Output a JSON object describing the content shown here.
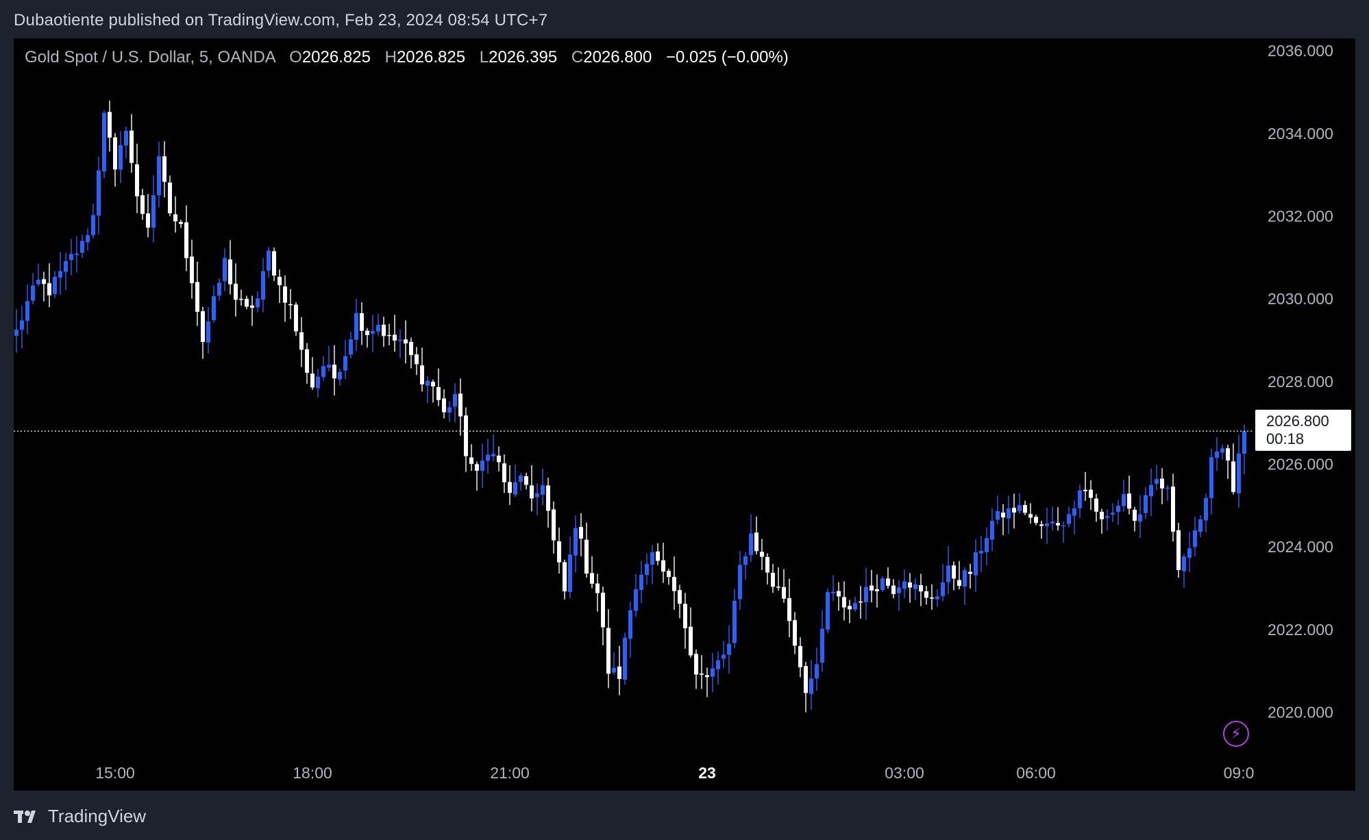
{
  "header": {
    "published": "Dubaotiente published on TradingView.com, Feb 23, 2024 08:54 UTC+7"
  },
  "legend": {
    "symbol": "Gold Spot / U.S. Dollar, 5, OANDA",
    "open_label": "O",
    "open": "2026.825",
    "high_label": "H",
    "high": "2026.825",
    "low_label": "L",
    "low": "2026.395",
    "close_label": "C",
    "close": "2026.800",
    "change": "−0.025 (−0.00%)"
  },
  "price_label": {
    "price": "2026.800",
    "countdown": "00:18"
  },
  "footer": {
    "brand": "TradingView"
  },
  "icons": {
    "alert": "lightning-icon",
    "logo": "tradingview-logo-icon"
  },
  "colors": {
    "up": "#2962ff",
    "down": "#ffffff",
    "background": "#000000",
    "axis_text": "#b2b5be"
  },
  "chart_data": {
    "type": "candlestick",
    "interval_minutes": 5,
    "y_ticks": [
      "2036.000",
      "2034.000",
      "2032.000",
      "2030.000",
      "2028.000",
      "2026.000",
      "2024.000",
      "2022.000",
      "2020.000"
    ],
    "ylim": [
      2018.9,
      2036.3
    ],
    "x_ticks": [
      {
        "label": "15:00",
        "bar": 18,
        "bold": false
      },
      {
        "label": "18:00",
        "bar": 54,
        "bold": false
      },
      {
        "label": "21:00",
        "bar": 90,
        "bold": false
      },
      {
        "label": "23",
        "bar": 126,
        "bold": true
      },
      {
        "label": "03:00",
        "bar": 162,
        "bold": false
      },
      {
        "label": "06:00",
        "bar": 186,
        "bold": false
      },
      {
        "label": "09:0",
        "bar": 223,
        "bold": false
      }
    ],
    "last_price": 2026.8,
    "total_slots": 225,
    "anchors": [
      [
        0,
        2029.2
      ],
      [
        2,
        2029.9
      ],
      [
        4,
        2030.4
      ],
      [
        6,
        2030.2
      ],
      [
        8,
        2030.6
      ],
      [
        10,
        2031.0
      ],
      [
        12,
        2031.3
      ],
      [
        14,
        2032.0
      ],
      [
        15,
        2033.2
      ],
      [
        16,
        2034.6
      ],
      [
        18,
        2033.0
      ],
      [
        20,
        2034.2
      ],
      [
        22,
        2032.4
      ],
      [
        24,
        2031.8
      ],
      [
        26,
        2033.3
      ],
      [
        28,
        2032.1
      ],
      [
        30,
        2031.7
      ],
      [
        32,
        2030.5
      ],
      [
        34,
        2029.0
      ],
      [
        36,
        2029.9
      ],
      [
        38,
        2030.9
      ],
      [
        40,
        2030.0
      ],
      [
        42,
        2029.7
      ],
      [
        44,
        2030.0
      ],
      [
        46,
        2031.1
      ],
      [
        48,
        2030.3
      ],
      [
        50,
        2029.8
      ],
      [
        52,
        2028.7
      ],
      [
        54,
        2027.9
      ],
      [
        56,
        2028.4
      ],
      [
        58,
        2028.1
      ],
      [
        60,
        2028.7
      ],
      [
        62,
        2029.6
      ],
      [
        64,
        2029.2
      ],
      [
        66,
        2029.4
      ],
      [
        68,
        2029.0
      ],
      [
        70,
        2029.0
      ],
      [
        72,
        2028.6
      ],
      [
        74,
        2028.1
      ],
      [
        76,
        2027.9
      ],
      [
        78,
        2027.2
      ],
      [
        80,
        2027.7
      ],
      [
        82,
        2026.3
      ],
      [
        84,
        2025.7
      ],
      [
        86,
        2026.4
      ],
      [
        88,
        2026.0
      ],
      [
        90,
        2025.2
      ],
      [
        92,
        2025.8
      ],
      [
        94,
        2025.0
      ],
      [
        96,
        2025.6
      ],
      [
        98,
        2024.1
      ],
      [
        100,
        2022.9
      ],
      [
        102,
        2024.6
      ],
      [
        104,
        2023.5
      ],
      [
        106,
        2022.9
      ],
      [
        108,
        2021.0
      ],
      [
        110,
        2020.9
      ],
      [
        112,
        2022.5
      ],
      [
        114,
        2023.5
      ],
      [
        116,
        2023.8
      ],
      [
        118,
        2023.3
      ],
      [
        120,
        2022.9
      ],
      [
        122,
        2022.1
      ],
      [
        124,
        2021.0
      ],
      [
        126,
        2020.8
      ],
      [
        128,
        2021.2
      ],
      [
        130,
        2021.6
      ],
      [
        132,
        2023.5
      ],
      [
        134,
        2024.3
      ],
      [
        136,
        2023.7
      ],
      [
        138,
        2023.1
      ],
      [
        140,
        2022.8
      ],
      [
        142,
        2021.7
      ],
      [
        144,
        2020.6
      ],
      [
        146,
        2021.0
      ],
      [
        148,
        2022.9
      ],
      [
        150,
        2022.7
      ],
      [
        152,
        2022.5
      ],
      [
        154,
        2022.8
      ],
      [
        156,
        2023.0
      ],
      [
        158,
        2023.2
      ],
      [
        160,
        2023.0
      ],
      [
        162,
        2023.3
      ],
      [
        164,
        2023.0
      ],
      [
        166,
        2022.7
      ],
      [
        168,
        2022.9
      ],
      [
        170,
        2023.4
      ],
      [
        172,
        2023.2
      ],
      [
        174,
        2023.4
      ],
      [
        176,
        2024.0
      ],
      [
        178,
        2024.6
      ],
      [
        180,
        2024.8
      ],
      [
        182,
        2024.9
      ],
      [
        184,
        2024.9
      ],
      [
        186,
        2024.5
      ],
      [
        188,
        2024.5
      ],
      [
        190,
        2024.6
      ],
      [
        192,
        2024.7
      ],
      [
        194,
        2025.5
      ],
      [
        196,
        2025.2
      ],
      [
        198,
        2024.6
      ],
      [
        200,
        2024.8
      ],
      [
        202,
        2025.3
      ],
      [
        204,
        2024.6
      ],
      [
        206,
        2025.1
      ],
      [
        208,
        2025.6
      ],
      [
        210,
        2025.3
      ],
      [
        212,
        2023.6
      ],
      [
        214,
        2024.0
      ],
      [
        216,
        2024.5
      ],
      [
        218,
        2026.2
      ],
      [
        220,
        2026.5
      ],
      [
        222,
        2025.4
      ],
      [
        224,
        2026.8
      ]
    ]
  }
}
